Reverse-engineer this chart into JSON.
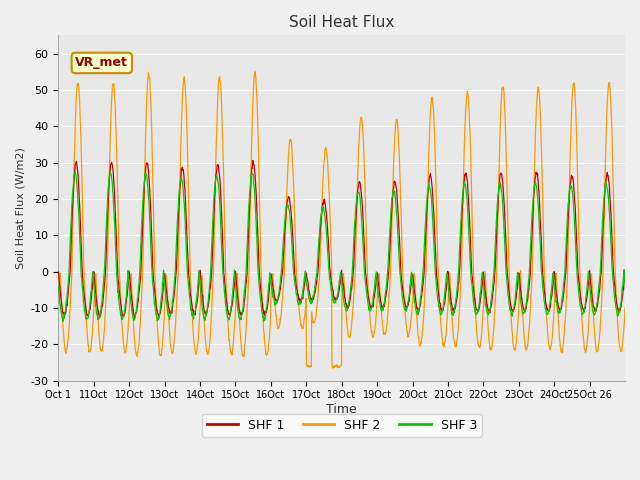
{
  "title": "Soil Heat Flux",
  "ylabel": "Soil Heat Flux (W/m2)",
  "xlabel": "Time",
  "ylim": [
    -30,
    65
  ],
  "yticks": [
    -30,
    -20,
    -10,
    0,
    10,
    20,
    30,
    40,
    50,
    60
  ],
  "shf1_color": "#cc0000",
  "shf2_color": "#ff9900",
  "shf3_color": "#00cc00",
  "legend_labels": [
    "SHF 1",
    "SHF 2",
    "SHF 3"
  ],
  "annotation_text": "VR_met",
  "fig_bg_color": "#f0f0f0",
  "plot_bg_color": "#e8e8e8",
  "grid_color": "#ffffff",
  "n_days": 16,
  "pts_per_day": 96,
  "x_tick_labels": [
    "Oct 1",
    "11Oct",
    "12Oct",
    "13Oct",
    "14Oct",
    "15Oct",
    "16Oct",
    "17Oct",
    "18Oct",
    "19Oct",
    "20Oct",
    "21Oct",
    "22Oct",
    "23Oct",
    "24Oct",
    "25Oct 26"
  ],
  "day_amplitudes_shf2": [
    1.0,
    1.0,
    1.05,
    1.02,
    1.03,
    1.05,
    0.7,
    0.65,
    0.82,
    0.8,
    0.92,
    0.95,
    0.98,
    0.97,
    1.0,
    1.0
  ],
  "day_amplitudes_shf1": [
    1.0,
    1.0,
    1.0,
    0.95,
    0.98,
    1.0,
    0.68,
    0.65,
    0.82,
    0.82,
    0.88,
    0.9,
    0.9,
    0.9,
    0.88,
    0.9
  ],
  "day_amplitudes_shf3": [
    1.0,
    1.0,
    1.0,
    0.95,
    0.98,
    1.0,
    0.68,
    0.65,
    0.82,
    0.82,
    0.88,
    0.9,
    0.9,
    0.9,
    0.88,
    0.9
  ]
}
